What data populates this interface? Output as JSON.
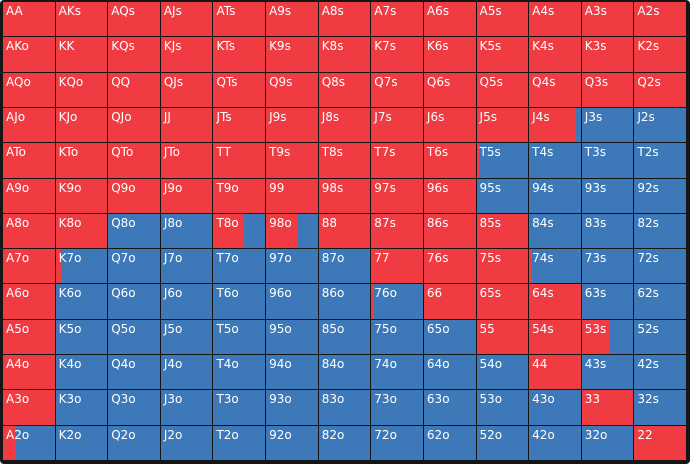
{
  "colors": {
    "raise": "#ef3b41",
    "fold": "#3d78b8",
    "background": "#151515"
  },
  "rows": [
    [
      [
        "AA",
        1
      ],
      [
        "AKs",
        1
      ],
      [
        "AQs",
        1
      ],
      [
        "AJs",
        1
      ],
      [
        "ATs",
        1
      ],
      [
        "A9s",
        1
      ],
      [
        "A8s",
        1
      ],
      [
        "A7s",
        1
      ],
      [
        "A6s",
        1
      ],
      [
        "A5s",
        1
      ],
      [
        "A4s",
        1
      ],
      [
        "A3s",
        1
      ],
      [
        "A2s",
        1
      ]
    ],
    [
      [
        "AKo",
        1
      ],
      [
        "KK",
        1
      ],
      [
        "KQs",
        1
      ],
      [
        "KJs",
        1
      ],
      [
        "KTs",
        1
      ],
      [
        "K9s",
        1
      ],
      [
        "K8s",
        1
      ],
      [
        "K7s",
        1
      ],
      [
        "K6s",
        1
      ],
      [
        "K5s",
        1
      ],
      [
        "K4s",
        1
      ],
      [
        "K3s",
        1
      ],
      [
        "K2s",
        1
      ]
    ],
    [
      [
        "AQo",
        1
      ],
      [
        "KQo",
        1
      ],
      [
        "QQ",
        1
      ],
      [
        "QJs",
        1
      ],
      [
        "QTs",
        1
      ],
      [
        "Q9s",
        1
      ],
      [
        "Q8s",
        1
      ],
      [
        "Q7s",
        1
      ],
      [
        "Q6s",
        1
      ],
      [
        "Q5s",
        1
      ],
      [
        "Q4s",
        1
      ],
      [
        "Q3s",
        1
      ],
      [
        "Q2s",
        1
      ]
    ],
    [
      [
        "AJo",
        1
      ],
      [
        "KJo",
        1
      ],
      [
        "QJo",
        1
      ],
      [
        "JJ",
        1
      ],
      [
        "JTs",
        1
      ],
      [
        "J9s",
        1
      ],
      [
        "J8s",
        1
      ],
      [
        "J7s",
        1
      ],
      [
        "J6s",
        1
      ],
      [
        "J5s",
        1
      ],
      [
        "J4s",
        0.9
      ],
      [
        "J3s",
        0
      ],
      [
        "J2s",
        0
      ]
    ],
    [
      [
        "ATo",
        1
      ],
      [
        "KTo",
        1
      ],
      [
        "QTo",
        1
      ],
      [
        "JTo",
        1
      ],
      [
        "TT",
        1
      ],
      [
        "T9s",
        1
      ],
      [
        "T8s",
        1
      ],
      [
        "T7s",
        1
      ],
      [
        "T6s",
        1
      ],
      [
        "T5s",
        0.05
      ],
      [
        "T4s",
        0
      ],
      [
        "T3s",
        0
      ],
      [
        "T2s",
        0
      ]
    ],
    [
      [
        "A9o",
        1
      ],
      [
        "K9o",
        1
      ],
      [
        "Q9o",
        1
      ],
      [
        "J9o",
        1
      ],
      [
        "T9o",
        1
      ],
      [
        "99",
        1
      ],
      [
        "98s",
        1
      ],
      [
        "97s",
        1
      ],
      [
        "96s",
        1
      ],
      [
        "95s",
        0
      ],
      [
        "94s",
        0
      ],
      [
        "93s",
        0
      ],
      [
        "92s",
        0
      ]
    ],
    [
      [
        "A8o",
        1
      ],
      [
        "K8o",
        1
      ],
      [
        "Q8o",
        0
      ],
      [
        "J8o",
        0
      ],
      [
        "T8o",
        0.6
      ],
      [
        "98o",
        0.6
      ],
      [
        "88",
        1
      ],
      [
        "87s",
        1
      ],
      [
        "86s",
        1
      ],
      [
        "85s",
        1
      ],
      [
        "84s",
        0
      ],
      [
        "83s",
        0
      ],
      [
        "82s",
        0
      ]
    ],
    [
      [
        "A7o",
        1
      ],
      [
        "K7o",
        0.12
      ],
      [
        "Q7o",
        0
      ],
      [
        "J7o",
        0
      ],
      [
        "T7o",
        0
      ],
      [
        "97o",
        0
      ],
      [
        "87o",
        0
      ],
      [
        "77",
        1
      ],
      [
        "76s",
        1
      ],
      [
        "75s",
        1
      ],
      [
        "74s",
        0.05
      ],
      [
        "73s",
        0
      ],
      [
        "72s",
        0
      ]
    ],
    [
      [
        "A6o",
        1
      ],
      [
        "K6o",
        0
      ],
      [
        "Q6o",
        0
      ],
      [
        "J6o",
        0
      ],
      [
        "T6o",
        0
      ],
      [
        "96o",
        0
      ],
      [
        "86o",
        0
      ],
      [
        "76o",
        0.05
      ],
      [
        "66",
        1
      ],
      [
        "65s",
        1
      ],
      [
        "64s",
        1
      ],
      [
        "63s",
        0
      ],
      [
        "62s",
        0
      ]
    ],
    [
      [
        "A5o",
        1
      ],
      [
        "K5o",
        0
      ],
      [
        "Q5o",
        0
      ],
      [
        "J5o",
        0
      ],
      [
        "T5o",
        0
      ],
      [
        "95o",
        0
      ],
      [
        "85o",
        0
      ],
      [
        "75o",
        0
      ],
      [
        "65o",
        0
      ],
      [
        "55",
        1
      ],
      [
        "54s",
        1
      ],
      [
        "53s",
        0.55
      ],
      [
        "52s",
        0
      ]
    ],
    [
      [
        "A4o",
        1
      ],
      [
        "K4o",
        0
      ],
      [
        "Q4o",
        0
      ],
      [
        "J4o",
        0
      ],
      [
        "T4o",
        0
      ],
      [
        "94o",
        0
      ],
      [
        "84o",
        0
      ],
      [
        "74o",
        0
      ],
      [
        "64o",
        0
      ],
      [
        "54o",
        0
      ],
      [
        "44",
        1
      ],
      [
        "43s",
        0
      ],
      [
        "42s",
        0
      ]
    ],
    [
      [
        "A3o",
        1
      ],
      [
        "K3o",
        0
      ],
      [
        "Q3o",
        0
      ],
      [
        "J3o",
        0
      ],
      [
        "T3o",
        0
      ],
      [
        "93o",
        0
      ],
      [
        "83o",
        0
      ],
      [
        "73o",
        0
      ],
      [
        "63o",
        0
      ],
      [
        "53o",
        0
      ],
      [
        "43o",
        0
      ],
      [
        "33",
        1
      ],
      [
        "32s",
        0
      ]
    ],
    [
      [
        "A2o",
        0.25
      ],
      [
        "K2o",
        0
      ],
      [
        "Q2o",
        0
      ],
      [
        "J2o",
        0
      ],
      [
        "T2o",
        0
      ],
      [
        "92o",
        0
      ],
      [
        "82o",
        0
      ],
      [
        "72o",
        0
      ],
      [
        "62o",
        0
      ],
      [
        "52o",
        0
      ],
      [
        "42o",
        0
      ],
      [
        "32o",
        0
      ],
      [
        "22",
        1
      ]
    ]
  ]
}
